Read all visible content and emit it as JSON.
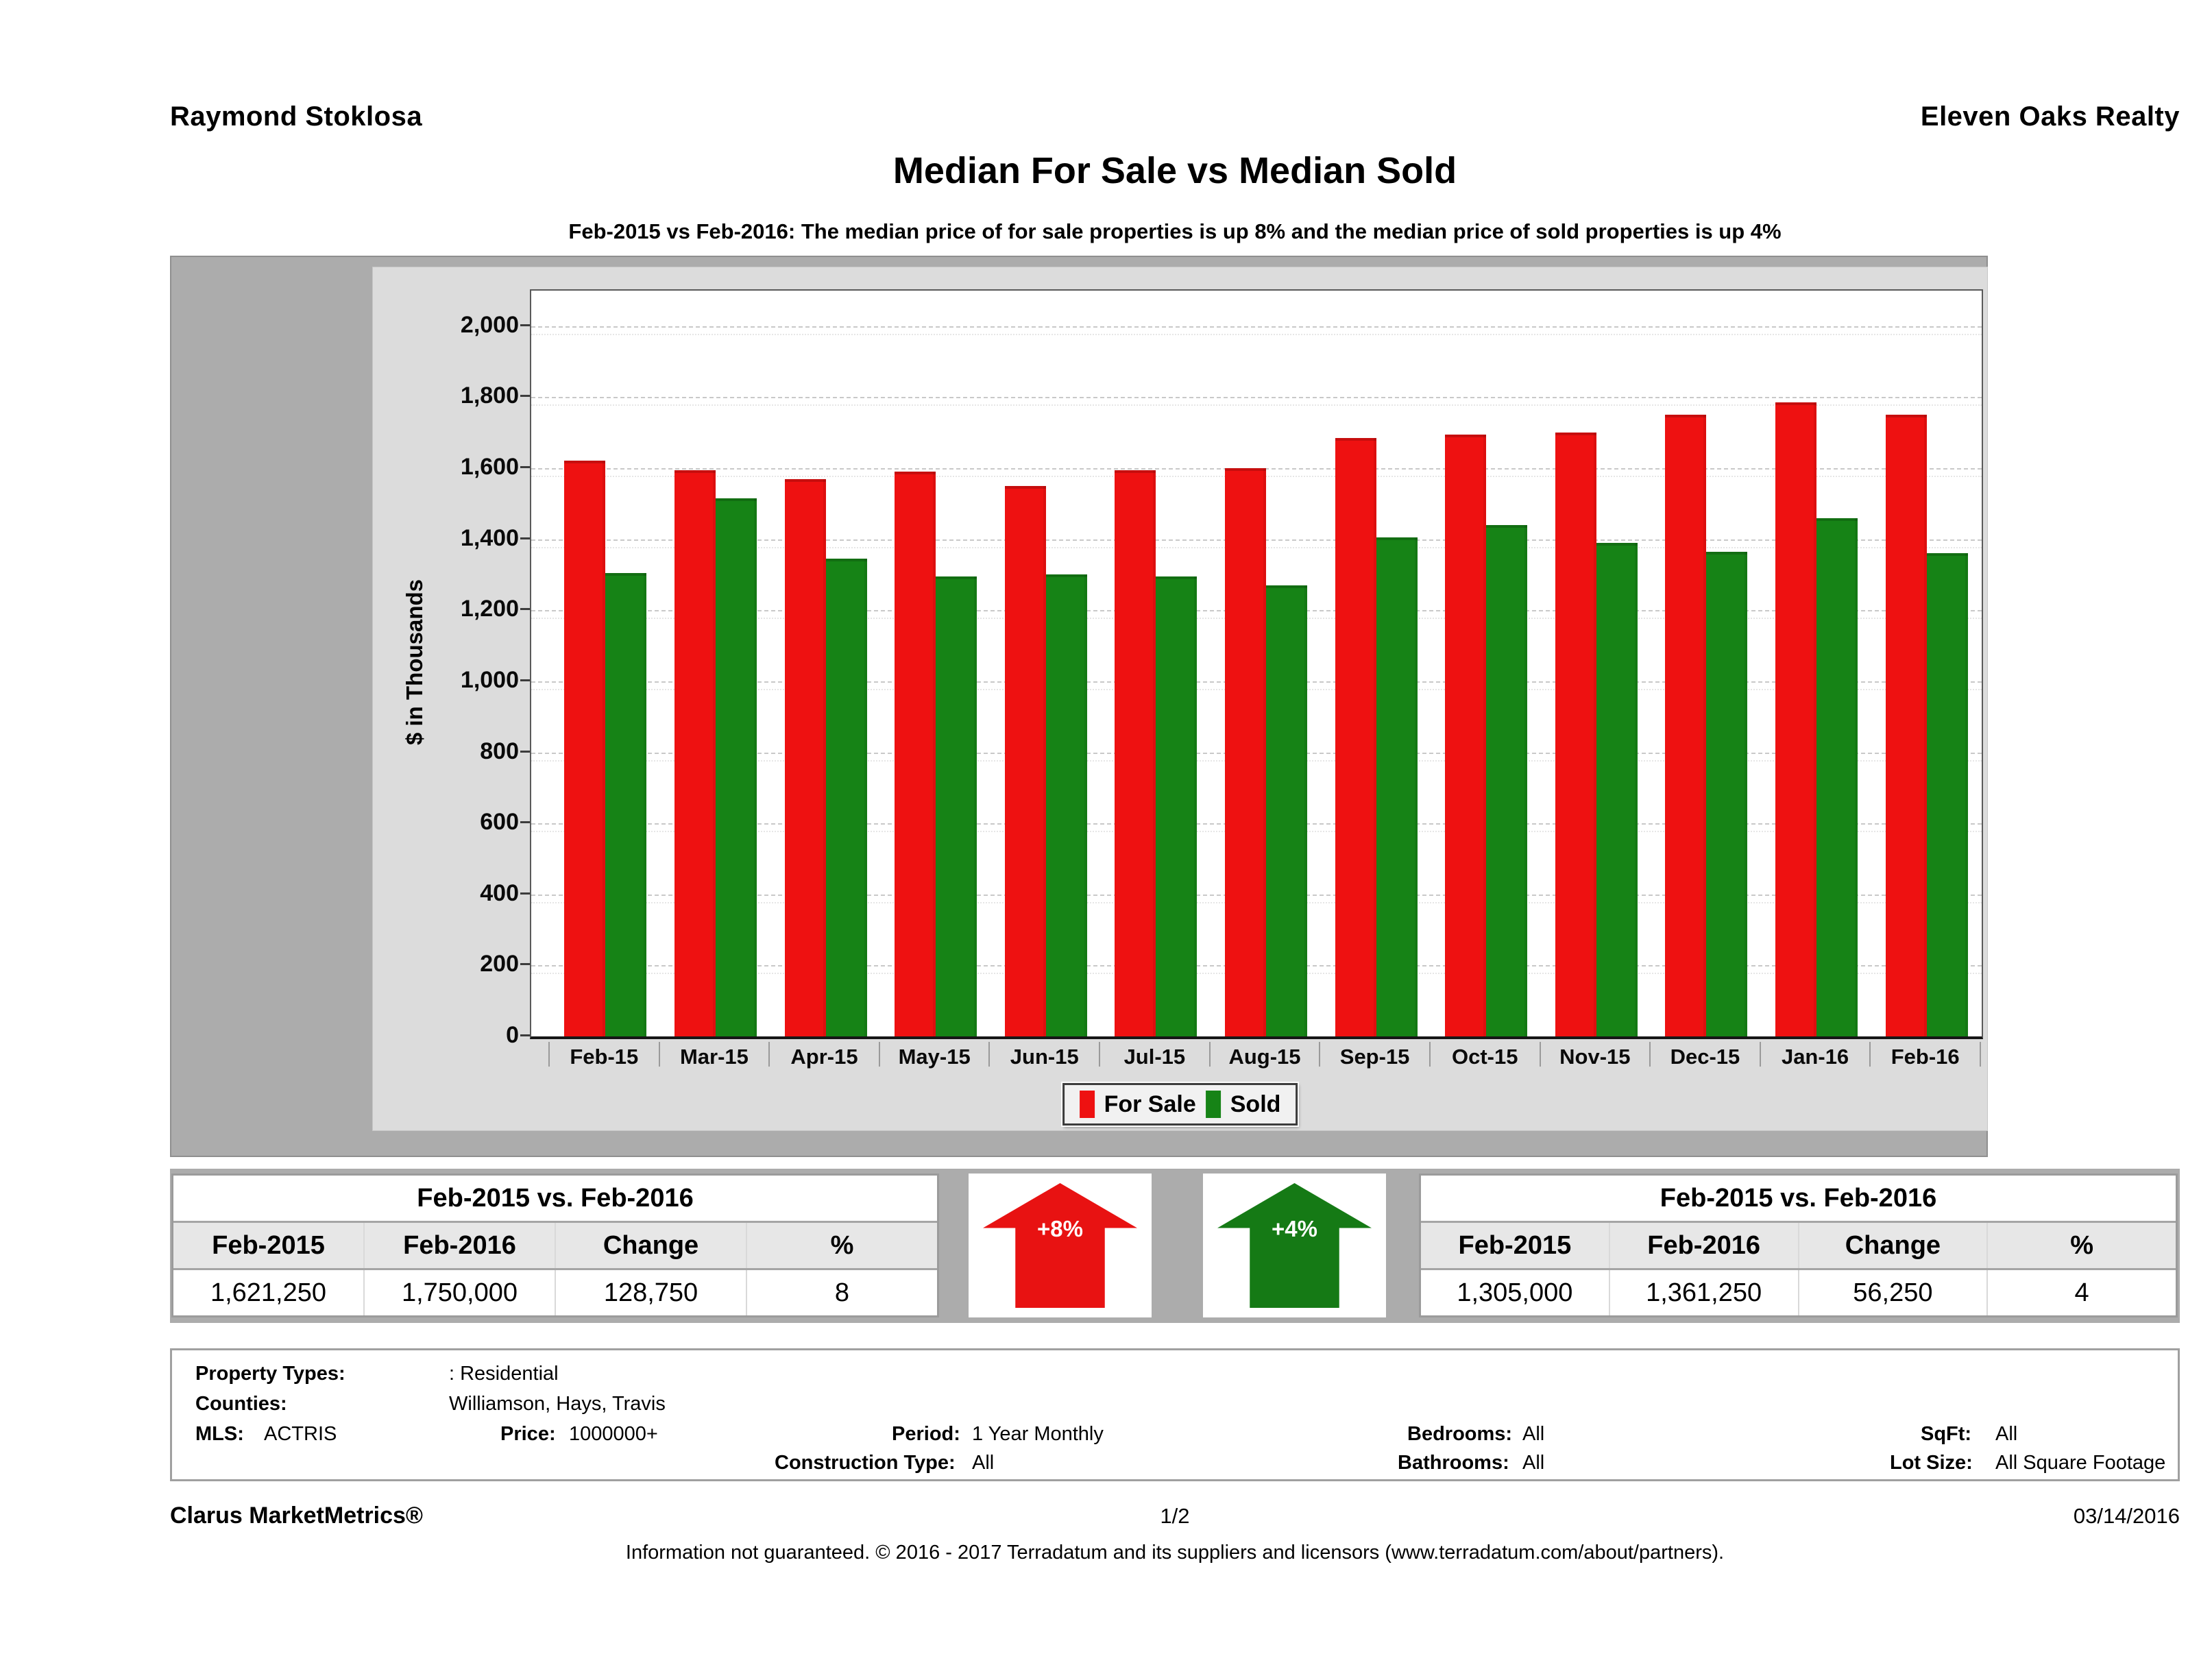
{
  "header": {
    "left": "Raymond Stoklosa",
    "right": "Eleven Oaks Realty"
  },
  "title": "Median For Sale vs Median Sold",
  "subtitle": "Feb-2015 vs Feb-2016: The median price of for sale properties is up 8% and the median price of sold properties is up 4%",
  "chart_data": {
    "type": "bar",
    "title": "Median For Sale vs Median Sold",
    "xlabel": "",
    "ylabel": "$ in Thousands",
    "units": "thousands of dollars",
    "ylim": [
      0,
      2100
    ],
    "ytick_step": 200,
    "grid": true,
    "legend_position": "bottom",
    "categories": [
      "Feb-15",
      "Mar-15",
      "Apr-15",
      "May-15",
      "Jun-15",
      "Jul-15",
      "Aug-15",
      "Sep-15",
      "Oct-15",
      "Nov-15",
      "Dec-15",
      "Jan-16",
      "Feb-16"
    ],
    "series": [
      {
        "name": "For Sale",
        "color": "#ee1111",
        "values": [
          1621.25,
          1595,
          1570,
          1590,
          1550,
          1595,
          1600,
          1685,
          1695,
          1700,
          1750,
          1785,
          1750
        ]
      },
      {
        "name": "Sold",
        "color": "#168316",
        "values": [
          1305,
          1515,
          1345,
          1295,
          1300,
          1295,
          1270,
          1405,
          1440,
          1390,
          1365,
          1460,
          1361.25
        ]
      }
    ]
  },
  "comparison_left": {
    "title": "Feb-2015 vs. Feb-2016",
    "headers": [
      "Feb-2015",
      "Feb-2016",
      "Change",
      "%"
    ],
    "values": [
      "1,621,250",
      "1,750,000",
      "128,750",
      "8"
    ]
  },
  "arrow_left": {
    "label": "+8%",
    "color": "#e81212"
  },
  "arrow_right": {
    "label": "+4%",
    "color": "#157a15"
  },
  "comparison_right": {
    "title": "Feb-2015 vs. Feb-2016",
    "headers": [
      "Feb-2015",
      "Feb-2016",
      "Change",
      "%"
    ],
    "values": [
      "1,305,000",
      "1,361,250",
      "56,250",
      "4"
    ]
  },
  "details": {
    "property_types_label": "Property Types:",
    "property_types": ": Residential",
    "counties_label": "Counties:",
    "counties": "Williamson, Hays, Travis",
    "mls_label": "MLS:",
    "mls": "ACTRIS",
    "price_label": "Price:",
    "price": "1000000+",
    "period_label": "Period:",
    "period": "1 Year Monthly",
    "construction_label": "Construction Type:",
    "construction": "All",
    "bedrooms_label": "Bedrooms:",
    "bedrooms": "All",
    "bathrooms_label": "Bathrooms:",
    "bathrooms": "All",
    "sqft_label": "SqFt:",
    "sqft": "All",
    "lot_label": "Lot Size:",
    "lot": "All Square Footage"
  },
  "footer": {
    "brand": "Clarus MarketMetrics®",
    "page": "1/2",
    "date": "03/14/2016",
    "disclaimer": "Information not guaranteed. © 2016 - 2017 Terradatum and its suppliers and licensors (www.terradatum.com/about/partners)."
  }
}
